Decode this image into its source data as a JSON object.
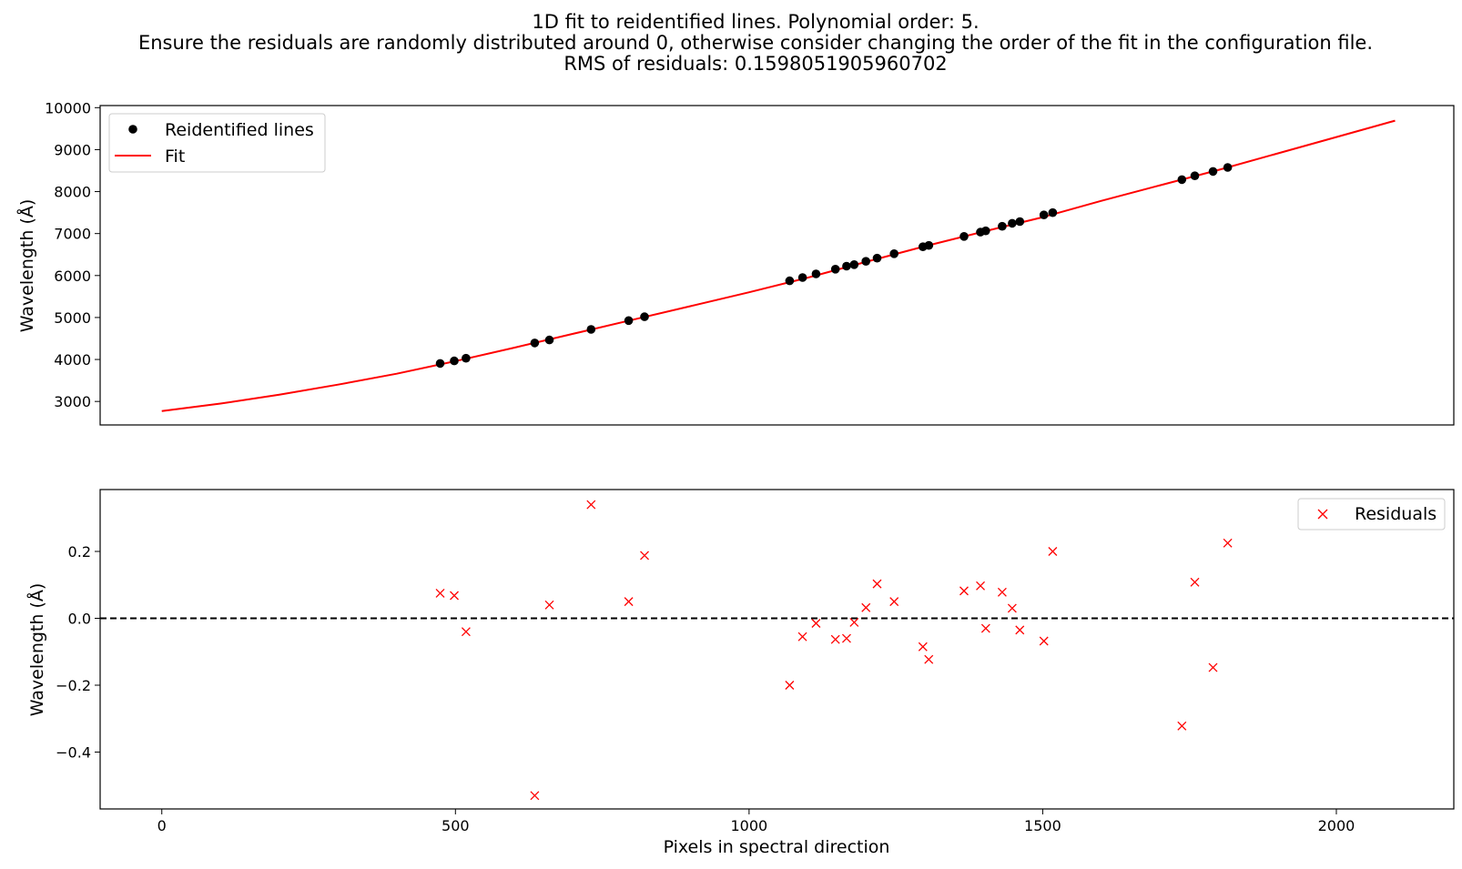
{
  "title_lines": [
    "1D fit to reidentified lines. Polynomial order: 5.",
    "Ensure the residuals are randomly distributed around 0, otherwise consider changing the order of the fit in the configuration file.",
    "RMS of residuals: 0.1598051905960702"
  ],
  "chart_data": [
    {
      "type": "scatter",
      "ylabel": "Wavelength (Å)",
      "xlabel": "",
      "xlim": [
        -105,
        2200
      ],
      "ylim": [
        2440,
        10050
      ],
      "yticks": [
        3000,
        4000,
        5000,
        6000,
        7000,
        8000,
        9000,
        10000
      ],
      "ytick_labels": [
        "3000",
        "4000",
        "5000",
        "6000",
        "7000",
        "8000",
        "9000",
        "10000"
      ],
      "legend_position": "upper-left",
      "colors": {
        "points": "#000000",
        "fit": "#ff0000"
      },
      "series": [
        {
          "name": "Reidentified lines",
          "kind": "points",
          "x": [
            474,
            498,
            518,
            635,
            660,
            731,
            795,
            822,
            1069,
            1091,
            1114,
            1147,
            1166,
            1179,
            1199,
            1218,
            1247,
            1296,
            1306,
            1366,
            1394,
            1403,
            1431,
            1448,
            1461,
            1502,
            1517,
            1737,
            1759,
            1790,
            1815
          ],
          "y": [
            3906,
            3966,
            4030,
            4394,
            4466,
            4716,
            4926,
            5017,
            5875,
            5953,
            6038,
            6151,
            6224,
            6260,
            6339,
            6414,
            6521,
            6685,
            6718,
            6932,
            7035,
            7065,
            7174,
            7245,
            7285,
            7445,
            7499,
            8285,
            8377,
            8480,
            8576
          ]
        },
        {
          "name": "Fit",
          "kind": "line",
          "x": [
            0,
            100,
            200,
            300,
            400,
            500,
            600,
            700,
            800,
            900,
            1000,
            1100,
            1200,
            1300,
            1400,
            1500,
            1600,
            1700,
            1800,
            1900,
            2000,
            2100
          ],
          "y": [
            2770,
            2950,
            3160,
            3400,
            3660,
            3960,
            4280,
            4610,
            4940,
            5270,
            5600,
            5950,
            6330,
            6700,
            7050,
            7390,
            7780,
            8150,
            8520,
            8910,
            9300,
            9690
          ]
        }
      ]
    },
    {
      "type": "scatter",
      "ylabel": "Wavelength (Å)",
      "xlabel": "Pixels in spectral direction",
      "xlim": [
        -105,
        2200
      ],
      "ylim": [
        -0.57,
        0.385
      ],
      "xticks": [
        0,
        500,
        1000,
        1500,
        2000
      ],
      "xtick_labels": [
        "0",
        "500",
        "1000",
        "1500",
        "2000"
      ],
      "yticks": [
        -0.4,
        -0.2,
        0.0,
        0.2
      ],
      "ytick_labels": [
        "−0.4",
        "−0.2",
        "0.0",
        "0.2"
      ],
      "reference_line": 0.0,
      "legend_position": "upper-right",
      "colors": {
        "points": "#ff0000",
        "reference": "#000000"
      },
      "series": [
        {
          "name": "Residuals",
          "kind": "x-markers",
          "x": [
            474,
            498,
            518,
            635,
            660,
            731,
            795,
            822,
            1069,
            1091,
            1114,
            1147,
            1166,
            1179,
            1199,
            1218,
            1247,
            1296,
            1306,
            1366,
            1394,
            1403,
            1431,
            1448,
            1461,
            1502,
            1517,
            1737,
            1759,
            1790,
            1815
          ],
          "y": [
            0.075,
            0.068,
            -0.04,
            -0.53,
            0.04,
            0.34,
            0.05,
            0.188,
            -0.2,
            -0.055,
            -0.015,
            -0.063,
            -0.06,
            -0.012,
            0.032,
            0.103,
            0.05,
            -0.085,
            -0.123,
            0.082,
            0.097,
            -0.03,
            0.078,
            0.03,
            -0.035,
            -0.068,
            0.2,
            -0.322,
            0.108,
            -0.147,
            0.225
          ]
        }
      ]
    }
  ]
}
